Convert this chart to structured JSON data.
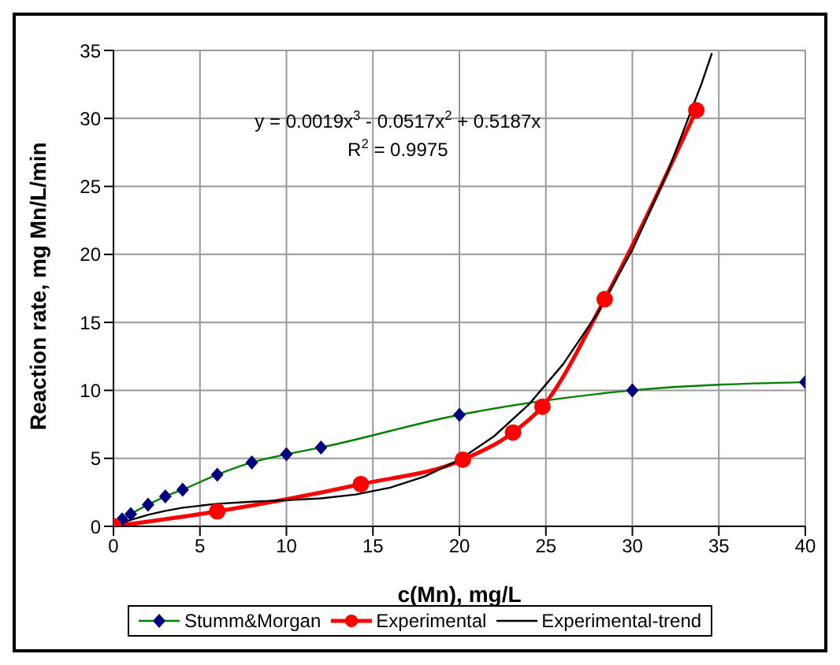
{
  "chart_data": {
    "type": "line",
    "xlabel": "c(Mn), mg/L",
    "ylabel": "Reaction rate, mg Mn/L/min",
    "xlim": [
      0,
      40
    ],
    "xticks": [
      0,
      5,
      10,
      15,
      20,
      25,
      30,
      35,
      40
    ],
    "ylim": [
      0,
      35
    ],
    "yticks": [
      0,
      5,
      10,
      15,
      20,
      25,
      30,
      35
    ],
    "grid": true,
    "legend": "bottom",
    "line_style": "solid",
    "annotations": [
      "y = 0.0019x$^{3}$ - 0.0517x$^{2}$ + 0.5187x",
      "R$^{2}$ = 0.9975"
    ],
    "series": [
      {
        "name": "Stumm&Morgan",
        "color": "#008000",
        "marker": "diamond",
        "x": [
          0,
          0.5,
          1,
          2,
          3,
          4,
          6,
          8,
          10,
          12,
          20,
          30,
          40
        ],
        "values": [
          0,
          0.5,
          0.9,
          1.6,
          2.2,
          2.7,
          3.8,
          4.7,
          5.3,
          5.8,
          8.2,
          10,
          10.6
        ]
      },
      {
        "name": "Experimental",
        "color": "#ff0000",
        "marker": "circle",
        "x": [
          0,
          6,
          14.3,
          20.2,
          23.1,
          24.8,
          28.4,
          33.7
        ],
        "values": [
          0,
          1.1,
          3.1,
          4.9,
          6.9,
          8.8,
          16.7,
          30.6
        ]
      },
      {
        "name": "Experimental-trend",
        "color": "#000000",
        "marker": "none",
        "x": [
          0,
          1,
          2,
          3,
          4,
          6,
          8,
          10,
          12,
          14,
          16,
          18,
          20,
          22,
          24,
          26,
          28,
          30,
          32,
          34,
          34.6
        ],
        "values": [
          0,
          0.47,
          0.85,
          1.14,
          1.37,
          1.66,
          1.81,
          1.92,
          2.06,
          2.34,
          2.85,
          3.67,
          4.89,
          6.62,
          8.94,
          11.93,
          15.7,
          20.33,
          25.92,
          32.56,
          34.8
        ]
      }
    ]
  }
}
